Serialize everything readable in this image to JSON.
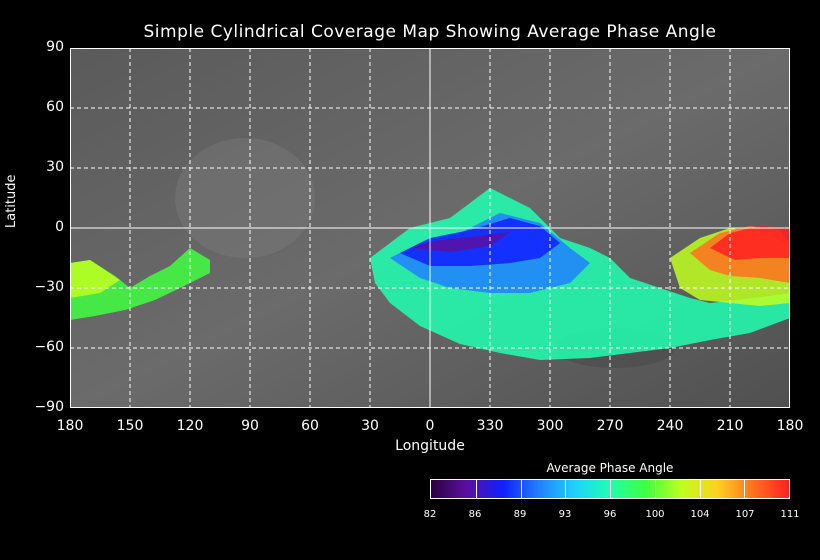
{
  "title": "Simple Cylindrical Coverage Map Showing Average Phase Angle",
  "ylabel": "Latitude",
  "xlabel": "Longitude",
  "y_ticks": [
    "90",
    "60",
    "30",
    "0",
    "−30",
    "−60",
    "−90"
  ],
  "x_ticks": [
    "180",
    "150",
    "120",
    "90",
    "60",
    "30",
    "0",
    "330",
    "300",
    "270",
    "240",
    "210",
    "180"
  ],
  "legend": {
    "title": "Average Phase Angle",
    "ticks": [
      "82",
      "86",
      "89",
      "93",
      "96",
      "100",
      "104",
      "107",
      "111"
    ]
  },
  "colors": {
    "background": "#000000",
    "grid": "#ffffff",
    "colormap": [
      "#2a0040",
      "#5a10a0",
      "#1020ff",
      "#2080ff",
      "#20d0ff",
      "#20ffb0",
      "#40ff40",
      "#c0ff20",
      "#ffd020",
      "#ff7020",
      "#ff2020"
    ]
  }
}
